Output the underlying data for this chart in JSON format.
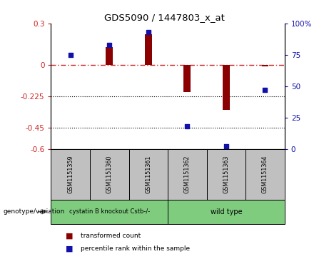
{
  "title": "GDS5090 / 1447803_x_at",
  "samples": [
    "GSM1151359",
    "GSM1151360",
    "GSM1151361",
    "GSM1151362",
    "GSM1151363",
    "GSM1151364"
  ],
  "transformed_count": [
    0.0,
    0.13,
    0.22,
    -0.19,
    -0.32,
    -0.01
  ],
  "percentile_rank": [
    75,
    83,
    93,
    18,
    2,
    47
  ],
  "ylim_left": [
    -0.6,
    0.3
  ],
  "ylim_right": [
    0,
    100
  ],
  "yticks_left": [
    0.3,
    0.0,
    -0.225,
    -0.45,
    -0.6
  ],
  "ytick_left_labels": [
    "0.3",
    "0",
    "-0.225",
    "-0.45",
    "-0.6"
  ],
  "yticks_right": [
    100,
    75,
    50,
    25,
    0
  ],
  "ytick_right_labels": [
    "100%",
    "75",
    "50",
    "25",
    "0"
  ],
  "dotted_lines": [
    -0.225,
    -0.45
  ],
  "bar_color": "#8B0000",
  "dot_color": "#1111aa",
  "group1_label": "cystatin B knockout Cstb-/-",
  "group2_label": "wild type",
  "group1_color": "#7FCC7F",
  "group2_color": "#7FCC7F",
  "genotype_label": "genotype/variation",
  "legend_red": "transformed count",
  "legend_blue": "percentile rank within the sample",
  "sample_box_color": "#c0c0c0",
  "bar_width": 0.18
}
